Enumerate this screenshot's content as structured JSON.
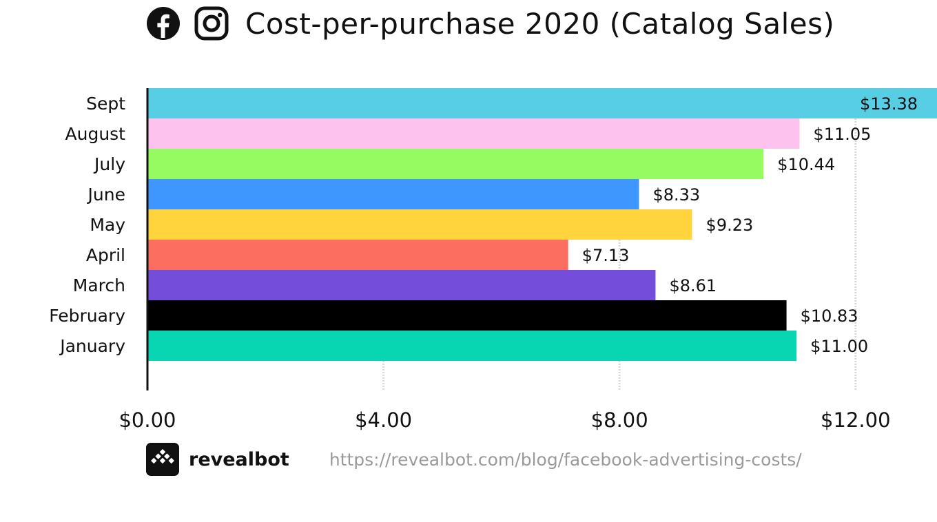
{
  "header": {
    "icons": [
      "facebook-icon",
      "instagram-icon"
    ],
    "title": "Cost-per-purchase 2020 (Catalog Sales)"
  },
  "chart_data": {
    "type": "bar",
    "orientation": "horizontal",
    "title": "Cost-per-purchase 2020 (Catalog Sales)",
    "xlabel": "",
    "ylabel": "",
    "xlim": [
      0,
      13.38
    ],
    "x_ticks": [
      0,
      4,
      8,
      12
    ],
    "x_tick_labels": [
      "$0.00",
      "$4.00",
      "$8.00",
      "$12.00"
    ],
    "grid": "vertical dashed at ticks",
    "categories": [
      "Sept",
      "August",
      "July",
      "June",
      "May",
      "April",
      "March",
      "February",
      "January"
    ],
    "values": [
      13.38,
      11.05,
      10.44,
      8.33,
      9.23,
      7.13,
      8.61,
      10.83,
      11.0
    ],
    "value_labels": [
      "$13.38",
      "$11.05",
      "$10.44",
      "$8.33",
      "$9.23",
      "$7.13",
      "$8.61",
      "$10.83",
      "$11.00"
    ],
    "colors": [
      "#57cee4",
      "#fdc3ee",
      "#95fb61",
      "#3e96ff",
      "#ffd43d",
      "#fc6e60",
      "#744edb",
      "#000000",
      "#08d6b2"
    ]
  },
  "footer": {
    "brand": "revealbot",
    "url": "https://revealbot.com/blog/facebook-advertising-costs/"
  }
}
